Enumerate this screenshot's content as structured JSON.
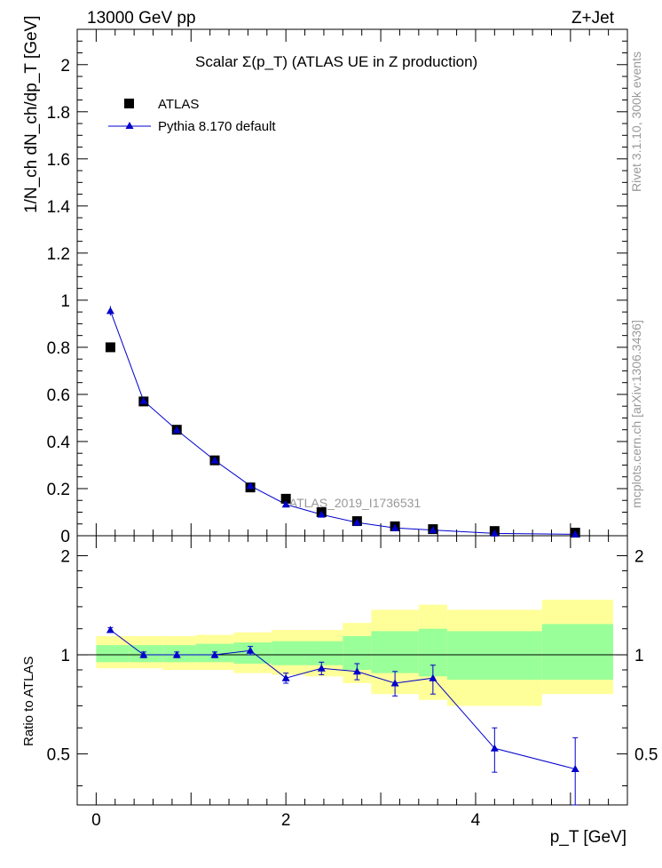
{
  "header": {
    "energy_label": "13000 GeV pp",
    "process_label": "Z+Jet"
  },
  "side_notes": {
    "rivet": "Rivet 3.1.10,  300k events",
    "mcplots": "mcplots.cern.ch [arXiv:1306.3436]"
  },
  "colors": {
    "atlas": "#000000",
    "pythia": "#0000cc",
    "band_outer": "#ffff99",
    "band_inner": "#99ff99",
    "watermark": "#999999"
  },
  "chart_data": [
    {
      "type": "scatter",
      "title": "Scalar Σ(p_T) (ATLAS UE in Z production)",
      "xlabel": "p_T [GeV]",
      "ylabel": "1/N_ch dN_ch/dp_T [GeV]",
      "xlim": [
        -0.2,
        5.6
      ],
      "ylim": [
        0,
        2.15
      ],
      "y_ticks": [
        0,
        0.2,
        0.4,
        0.6,
        0.8,
        1,
        1.2,
        1.4,
        1.6,
        1.8,
        2
      ],
      "y_tick_labels": [
        "0",
        "0.2",
        "0.4",
        "0.6",
        "0.8",
        "1",
        "1.2",
        "1.4",
        "1.6",
        "1.8",
        "2"
      ],
      "watermark": "ATLAS_2019_I1736531",
      "legend_position": "top-left",
      "series": [
        {
          "name": "ATLAS",
          "marker": "square",
          "x": [
            0.15,
            0.5,
            0.85,
            1.25,
            1.625,
            2.0,
            2.375,
            2.75,
            3.15,
            3.55,
            4.2,
            5.05
          ],
          "y": [
            0.8,
            0.57,
            0.45,
            0.32,
            0.205,
            0.157,
            0.1,
            0.062,
            0.04,
            0.028,
            0.02,
            0.013
          ]
        },
        {
          "name": "Pythia 8.170 default",
          "marker": "triangle",
          "x": [
            0.15,
            0.5,
            0.85,
            1.25,
            1.625,
            2.0,
            2.375,
            2.75,
            3.15,
            3.55,
            4.2,
            5.05
          ],
          "y": [
            0.955,
            0.573,
            0.449,
            0.32,
            0.212,
            0.133,
            0.09,
            0.056,
            0.033,
            0.024,
            0.01,
            0.006
          ],
          "err": [
            0.02,
            0.012,
            0.01,
            0.008,
            0.006,
            0.005,
            0.004,
            0.003,
            0.003,
            0.003,
            0.002,
            0.002
          ]
        }
      ]
    },
    {
      "type": "scatter",
      "ylabel": "Ratio to ATLAS",
      "xlabel": "p_T [GeV]",
      "xlim": [
        -0.2,
        5.6
      ],
      "ylim": [
        0.35,
        2.3
      ],
      "y_ticks": [
        0.5,
        1,
        2
      ],
      "y_tick_labels": [
        "0.5",
        "1",
        "2"
      ],
      "x_ticks": [
        0,
        2,
        4
      ],
      "x_tick_labels": [
        "0",
        "2",
        "4"
      ],
      "bands": {
        "bin_edges": [
          0,
          0.35,
          0.7,
          1.05,
          1.45,
          1.85,
          2.2,
          2.6,
          2.9,
          3.4,
          3.7,
          4.7,
          5.45
        ],
        "outer_low": [
          0.91,
          0.91,
          0.9,
          0.9,
          0.88,
          0.87,
          0.86,
          0.82,
          0.76,
          0.73,
          0.7,
          0.76,
          0.64
        ],
        "outer_high": [
          1.14,
          1.14,
          1.14,
          1.15,
          1.17,
          1.19,
          1.19,
          1.25,
          1.37,
          1.42,
          1.37,
          1.47,
          1.47
        ],
        "inner_low": [
          0.95,
          0.95,
          0.95,
          0.95,
          0.94,
          0.93,
          0.93,
          0.9,
          0.88,
          0.86,
          0.84,
          0.84,
          0.84
        ],
        "inner_high": [
          1.07,
          1.07,
          1.07,
          1.08,
          1.09,
          1.1,
          1.1,
          1.14,
          1.18,
          1.2,
          1.18,
          1.24,
          1.24
        ]
      },
      "series": [
        {
          "name": "Pythia 8.170 default / ATLAS",
          "x": [
            0.15,
            0.5,
            0.85,
            1.25,
            1.625,
            2.0,
            2.375,
            2.75,
            3.15,
            3.55,
            4.2,
            5.05
          ],
          "y": [
            1.19,
            1.0,
            1.0,
            1.0,
            1.03,
            0.85,
            0.91,
            0.89,
            0.82,
            0.85,
            0.52,
            0.45
          ],
          "err_low": [
            0.02,
            0.02,
            0.02,
            0.02,
            0.03,
            0.03,
            0.04,
            0.05,
            0.07,
            0.09,
            0.08,
            0.1
          ],
          "err_high": [
            0.02,
            0.02,
            0.02,
            0.02,
            0.03,
            0.03,
            0.04,
            0.05,
            0.07,
            0.08,
            0.08,
            0.11
          ]
        }
      ]
    }
  ]
}
